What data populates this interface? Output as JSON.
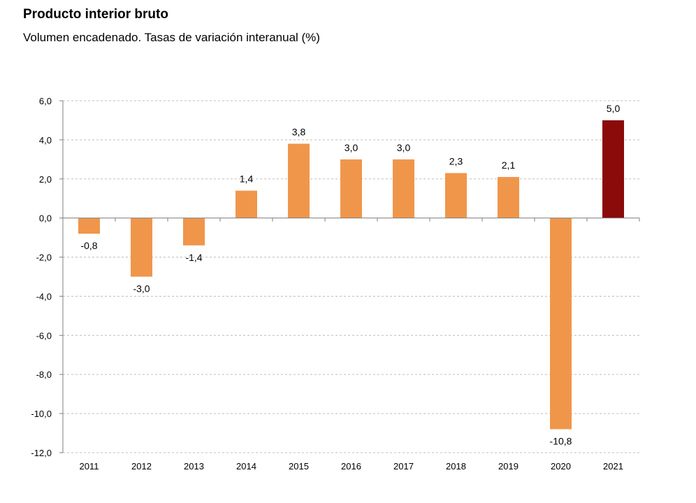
{
  "chart_data": {
    "type": "bar",
    "title": "Producto interior bruto",
    "subtitle": "Volumen encadenado. Tasas de variación interanual (%)",
    "xlabel": "",
    "ylabel": "",
    "categories": [
      "2011",
      "2012",
      "2013",
      "2014",
      "2015",
      "2016",
      "2017",
      "2018",
      "2019",
      "2020",
      "2021"
    ],
    "values": [
      -0.8,
      -3.0,
      -1.4,
      1.4,
      3.8,
      3.0,
      3.0,
      2.3,
      2.1,
      -10.8,
      5.0
    ],
    "value_labels": [
      "-0,8",
      "-3,0",
      "-1,4",
      "1,4",
      "3,8",
      "3,0",
      "3,0",
      "2,3",
      "2,1",
      "-10,8",
      "5,0"
    ],
    "ylim": [
      -12,
      6
    ],
    "yticks": [
      6,
      4,
      2,
      0,
      -2,
      -4,
      -6,
      -8,
      -10,
      -12
    ],
    "ytick_labels": [
      "6,0",
      "4,0",
      "2,0",
      "0,0",
      "-2,0",
      "-4,0",
      "-6,0",
      "-8,0",
      "-10,0",
      "-12,0"
    ],
    "grid": true,
    "legend": "none",
    "colors": {
      "default": "#F0964B",
      "highlight": "#8B0A0A",
      "grid": "#BFBFBF",
      "axis": "#7F7F7F"
    },
    "highlight_categories": [
      "2021"
    ]
  }
}
